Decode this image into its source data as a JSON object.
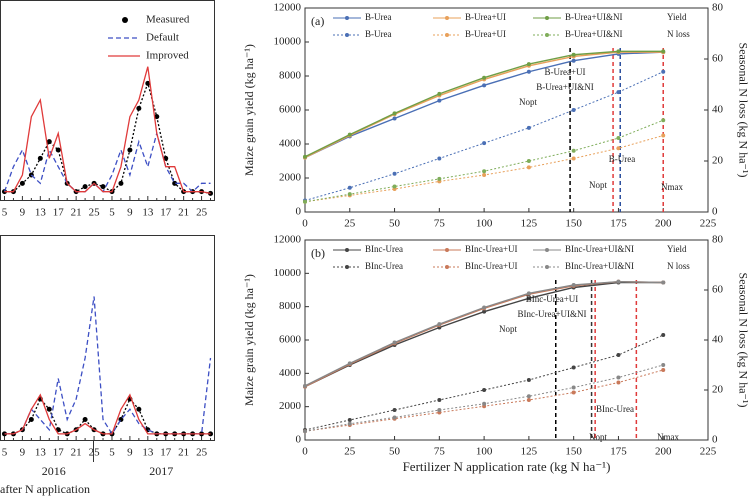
{
  "chart_data": [
    {
      "type": "line",
      "categories": [
        "5",
        null,
        "9",
        null,
        "13",
        null,
        "17",
        null,
        "21",
        null,
        "25",
        null,
        "5",
        null,
        "9",
        null,
        "13",
        null,
        "17",
        null,
        "21",
        null,
        "25",
        null
      ],
      "ylim": [
        0,
        1.2
      ],
      "series": [
        {
          "name": "Measured",
          "color": "#000000",
          "line_style": "dotted",
          "marker": "circle",
          "values": [
            0.05,
            0.05,
            0.1,
            0.15,
            0.25,
            0.35,
            0.3,
            0.1,
            0.05,
            0.08,
            0.1,
            0.08,
            0.05,
            0.1,
            0.3,
            0.55,
            0.7,
            0.5,
            0.25,
            0.1,
            0.05,
            0.05,
            0.05,
            0.04
          ]
        },
        {
          "name": "Default",
          "color": "#3d4fc4",
          "line_style": "dashed",
          "marker": "none",
          "values": [
            0.05,
            0.2,
            0.3,
            0.15,
            0.1,
            0.3,
            0.2,
            0.1,
            0.05,
            0.05,
            0.1,
            0.05,
            0.15,
            0.3,
            0.15,
            0.35,
            0.2,
            0.4,
            0.2,
            0.1,
            0.1,
            0.05,
            0.1,
            0.1
          ]
        },
        {
          "name": "Improved",
          "color": "#e03a3a",
          "line_style": "solid",
          "marker": "none",
          "values": [
            0.05,
            0.05,
            0.15,
            0.5,
            0.6,
            0.25,
            0.4,
            0.1,
            0.05,
            0.05,
            0.1,
            0.05,
            0.05,
            0.2,
            0.5,
            0.6,
            0.8,
            0.4,
            0.2,
            0.2,
            0.05,
            0.05,
            0.05,
            0.04
          ]
        }
      ]
    },
    {
      "type": "line",
      "categories": [
        "5",
        null,
        "9",
        null,
        "13",
        null,
        "17",
        null,
        "21",
        null,
        "25",
        null,
        "5",
        null,
        "9",
        null,
        "13",
        null,
        "17",
        null,
        "21",
        null,
        "25",
        null
      ],
      "ylim": [
        0,
        1
      ],
      "groups": [
        "2016",
        "2017"
      ],
      "xlabel": "after N application",
      "series": [
        {
          "color": "#000000",
          "line_style": "dotted",
          "marker": "circle",
          "values": [
            0.03,
            0.03,
            0.05,
            0.1,
            0.2,
            0.15,
            0.05,
            0.03,
            0.05,
            0.1,
            0.05,
            0.03,
            0.03,
            0.1,
            0.2,
            0.15,
            0.05,
            0.03,
            0.03,
            0.03,
            0.03,
            0.03,
            0.03,
            0.03
          ]
        },
        {
          "color": "#3d4fc4",
          "line_style": "dashed",
          "marker": "none",
          "values": [
            0.03,
            0.03,
            0.05,
            0.15,
            0.1,
            0.05,
            0.3,
            0.1,
            0.2,
            0.4,
            0.7,
            0.1,
            0.03,
            0.1,
            0.15,
            0.08,
            0.05,
            0.03,
            0.03,
            0.03,
            0.03,
            0.03,
            0.03,
            0.4
          ]
        },
        {
          "color": "#e03a3a",
          "line_style": "solid",
          "marker": "none",
          "values": [
            0.03,
            0.03,
            0.05,
            0.15,
            0.22,
            0.1,
            0.03,
            0.03,
            0.05,
            0.08,
            0.05,
            0.03,
            0.03,
            0.15,
            0.22,
            0.1,
            0.03,
            0.03,
            0.03,
            0.03,
            0.03,
            0.03,
            0.03,
            0.03
          ]
        }
      ]
    },
    {
      "type": "xy",
      "panel_label": "(a)",
      "ylabel": "Maize grain yield (kg ha⁻¹)",
      "y2label": "Seasonal N loss (kg N ha⁻¹)",
      "legend_group_labels": [
        "Yield",
        "N loss"
      ],
      "x": [
        0,
        25,
        50,
        75,
        100,
        125,
        150,
        175,
        200
      ],
      "xlim": [
        0,
        225
      ],
      "xticks": [
        0,
        25,
        50,
        75,
        100,
        125,
        150,
        175,
        200,
        225
      ],
      "ylim": [
        0,
        12000
      ],
      "yticks": [
        0,
        2000,
        4000,
        6000,
        8000,
        10000,
        12000
      ],
      "y2lim": [
        0,
        80
      ],
      "y2ticks": [
        0,
        20,
        40,
        60,
        80
      ],
      "series": [
        {
          "name": "B-Urea",
          "color": "#4a6fb5",
          "axis": "y",
          "line_style": "solid",
          "values": [
            3200,
            4450,
            5500,
            6550,
            7450,
            8250,
            8900,
            9300,
            9400
          ]
        },
        {
          "name": "B-Urea+UI",
          "color": "#e8a05a",
          "axis": "y",
          "line_style": "solid",
          "values": [
            3200,
            4500,
            5750,
            6850,
            7800,
            8600,
            9150,
            9400,
            9400
          ]
        },
        {
          "name": "B-Urea+UI&NI",
          "color": "#6f9e45",
          "axis": "y",
          "line_style": "solid",
          "values": [
            3250,
            4550,
            5800,
            6950,
            7900,
            8700,
            9250,
            9450,
            9450
          ]
        },
        {
          "name": "B-Urea",
          "color": "#4a6fb5",
          "axis": "y2",
          "line_style": "dotted",
          "values": [
            4.5,
            9.5,
            15,
            21,
            27,
            33,
            40,
            47,
            55
          ]
        },
        {
          "name": "B-Urea+UI",
          "color": "#e8a05a",
          "axis": "y2",
          "line_style": "dotted",
          "values": [
            4,
            6.5,
            9,
            12,
            14.5,
            17.5,
            21,
            25,
            30
          ]
        },
        {
          "name": "B-Urea+UI&NI",
          "color": "#7fad5a",
          "axis": "y2",
          "line_style": "dotted",
          "values": [
            4,
            7,
            10,
            13,
            16,
            20,
            24,
            29,
            36
          ]
        }
      ],
      "vlines": [
        {
          "x": 148,
          "color": "#000000"
        },
        {
          "x": 172,
          "color": "#e03a3a"
        },
        {
          "x": 176,
          "color": "#2b4f9e"
        },
        {
          "x": 200,
          "color": "#e03a3a"
        }
      ],
      "annotations": [
        "Nopt",
        "B-Urea+UI",
        "B-Urea+UI&NI",
        "Nopt",
        "B-Urea",
        "Nmax"
      ]
    },
    {
      "type": "xy",
      "panel_label": "(b)",
      "ylabel": "Maize grain yield (kg ha⁻¹)",
      "y2label": "Seasonal N loss (kg N ha⁻¹)",
      "xlabel": "Fertilizer N application rate (kg N ha⁻¹)",
      "legend_group_labels": [
        "Yield",
        "N loss"
      ],
      "x": [
        0,
        25,
        50,
        75,
        100,
        125,
        150,
        175,
        200
      ],
      "xlim": [
        0,
        225
      ],
      "xticks": [
        0,
        25,
        50,
        75,
        100,
        125,
        150,
        175,
        200,
        225
      ],
      "ylim": [
        0,
        12000
      ],
      "yticks": [
        0,
        2000,
        4000,
        6000,
        8000,
        10000,
        12000
      ],
      "y2lim": [
        0,
        80
      ],
      "y2ticks": [
        0,
        20,
        40,
        60,
        80
      ],
      "series": [
        {
          "name": "BInc-Urea",
          "color": "#444444",
          "axis": "y",
          "line_style": "solid",
          "values": [
            3200,
            4500,
            5700,
            6750,
            7700,
            8500,
            9150,
            9450,
            9450
          ]
        },
        {
          "name": "BInc-Urea+UI",
          "color": "#c9795a",
          "axis": "y",
          "line_style": "solid",
          "values": [
            3200,
            4550,
            5800,
            6900,
            7900,
            8750,
            9250,
            9500,
            9450
          ]
        },
        {
          "name": "BInc-Urea+UI&NI",
          "color": "#888888",
          "axis": "y",
          "line_style": "solid",
          "values": [
            3250,
            4600,
            5850,
            6950,
            7950,
            8800,
            9300,
            9500,
            9450
          ]
        },
        {
          "name": "BInc-Urea",
          "color": "#444444",
          "axis": "y2",
          "line_style": "dotted",
          "values": [
            4,
            8,
            12,
            16,
            20,
            24,
            29,
            34,
            42
          ]
        },
        {
          "name": "BInc-Urea+UI",
          "color": "#c9795a",
          "axis": "y2",
          "line_style": "dotted",
          "values": [
            3.5,
            6,
            8.5,
            11,
            13.5,
            16,
            19,
            23,
            28
          ]
        },
        {
          "name": "BInc-Urea+UI&NI",
          "color": "#888888",
          "axis": "y2",
          "line_style": "dotted",
          "values": [
            3.5,
            6.5,
            9,
            12,
            14.5,
            17.5,
            21,
            25,
            30
          ]
        }
      ],
      "vlines": [
        {
          "x": 140,
          "color": "#000000"
        },
        {
          "x": 160,
          "color": "#333333"
        },
        {
          "x": 162,
          "color": "#e03a3a"
        },
        {
          "x": 185,
          "color": "#e03a3a"
        }
      ],
      "annotations": [
        "Nopt",
        "BInc-Urea+UI",
        "BInc-Urea+UI&NI",
        "Nopt",
        "BInc-Urea",
        "Nmax"
      ]
    }
  ]
}
